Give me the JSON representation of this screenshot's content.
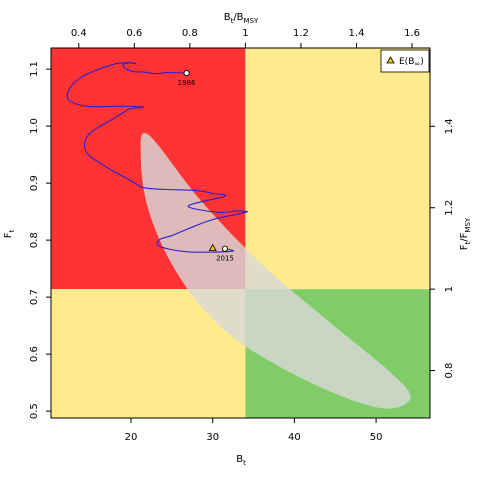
{
  "chart_data": {
    "type": "line",
    "xlabel": "B",
    "xlabel_sub": "t",
    "ylabel": "F",
    "ylabel_sub": "t",
    "top_label": "B",
    "top_label_sub": "t",
    "top_label_div": "/B",
    "top_label_div_sub": "MSY",
    "right_label": "F",
    "right_label_sub": "t",
    "right_label_div": "/F",
    "right_label_div_sub": "MSY",
    "xlim": [
      10.2,
      56.6
    ],
    "ylim": [
      0.488,
      1.137
    ],
    "x_ticks": [
      20,
      30,
      40,
      50
    ],
    "y_ticks": [
      0.5,
      0.6,
      0.7,
      0.8,
      0.9,
      1.0,
      1.1
    ],
    "bmsy": 34.0,
    "fmsy": 0.714,
    "top_ticks": [
      0.4,
      0.6,
      0.8,
      1,
      1.2,
      1.4,
      1.6
    ],
    "top_tick_labels": [
      "0.4",
      "0.6",
      "0.8",
      "1",
      "1.2",
      "1.4",
      "1.6"
    ],
    "right_ticks": [
      0.8,
      1,
      1.2,
      1.4
    ],
    "right_tick_labels": [
      "0.8",
      "1",
      "1.2",
      "1.4"
    ],
    "quadrant_colors": {
      "red": "#ff3333",
      "yellow": "#ffeb8c",
      "green": "#80cc66"
    },
    "ellipse_color": "#d8d8d8",
    "line_color": "#2a1fcf",
    "ellipse": {
      "polygon": [
        [
          22.1,
          0.985
        ],
        [
          28.5,
          0.87
        ],
        [
          36,
          0.758
        ],
        [
          44,
          0.66
        ],
        [
          52,
          0.565
        ],
        [
          54.2,
          0.522
        ],
        [
          50.8,
          0.505
        ],
        [
          43.5,
          0.54
        ],
        [
          34.4,
          0.61
        ],
        [
          28.8,
          0.68
        ],
        [
          24.6,
          0.768
        ],
        [
          22,
          0.86
        ],
        [
          21.2,
          0.945
        ]
      ]
    },
    "trajectory": {
      "x": [
        26.8,
        24.5,
        23.0,
        21.5,
        20.6,
        19.5,
        19.0,
        19.8,
        20.5,
        18.0,
        13.6,
        12.2,
        14.5,
        19.0,
        21.5,
        20.0,
        19.2,
        17.5,
        14.8,
        14.5,
        17.0,
        19.0,
        20.5,
        21.5,
        24.0,
        28.0,
        30.0,
        31.5,
        27.0,
        30.5,
        33.0,
        34.1,
        30.0,
        27.0,
        25.0,
        23.5,
        23.5,
        26.5,
        30.0,
        32.5,
        31.5
      ],
      "y": [
        1.093,
        1.094,
        1.092,
        1.095,
        1.095,
        1.099,
        1.107,
        1.111,
        1.11,
        1.109,
        1.083,
        1.05,
        1.035,
        1.035,
        1.033,
        1.031,
        1.025,
        1.01,
        0.985,
        0.955,
        0.928,
        0.912,
        0.9,
        0.892,
        0.889,
        0.887,
        0.882,
        0.877,
        0.86,
        0.849,
        0.851,
        0.849,
        0.836,
        0.82,
        0.808,
        0.801,
        0.789,
        0.78,
        0.779,
        0.781,
        0.785
      ]
    },
    "start_point": {
      "x": 26.8,
      "y": 1.093,
      "label": "1986"
    },
    "end_point": {
      "x": 31.5,
      "y": 0.785,
      "label": "2015"
    },
    "expected_point": {
      "x": 30.0,
      "y": 0.786
    },
    "legend_label": "E(B",
    "legend_label_sub": "∞",
    "legend_label_end": ")",
    "legend_position": "top-right"
  }
}
